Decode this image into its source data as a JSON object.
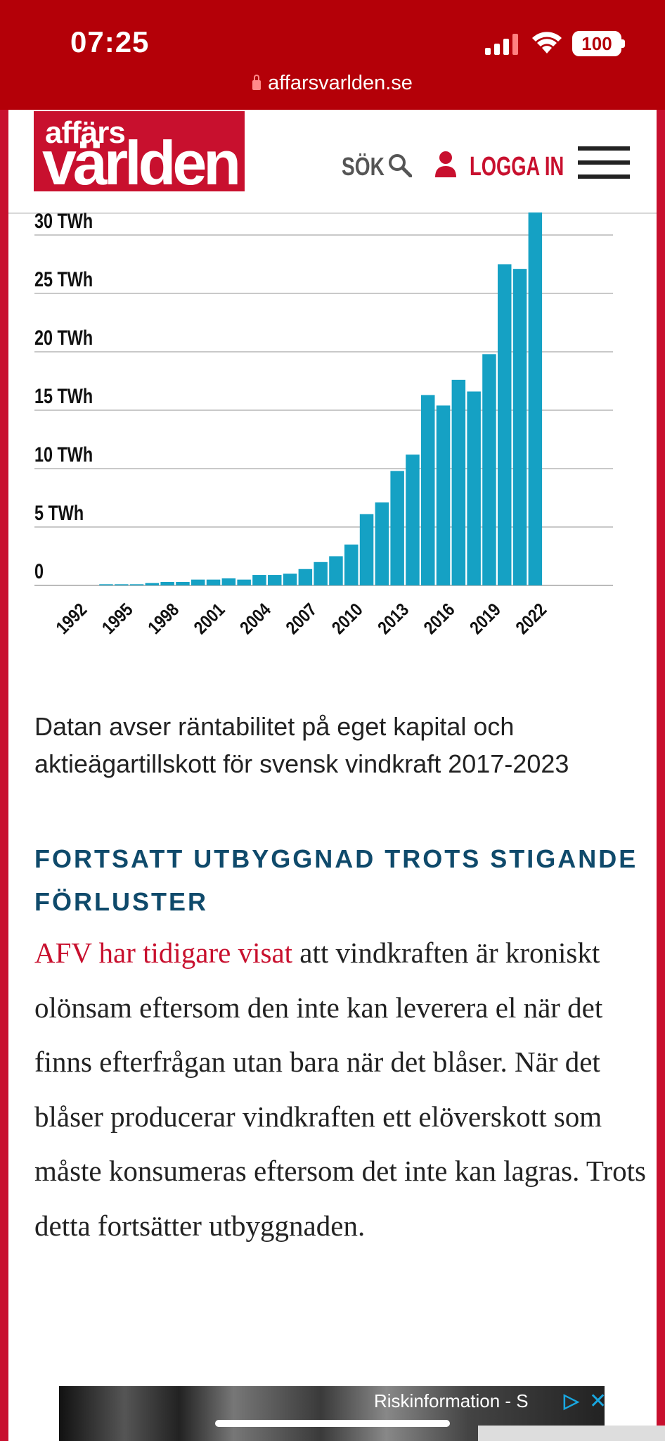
{
  "status_bar": {
    "time": "07:25",
    "battery": "100",
    "url": "affarsvarlden.se"
  },
  "header": {
    "logo_line1": "affärs",
    "logo_line2": "världen",
    "search_label": "SÖK",
    "login_label": "LOGGA IN"
  },
  "colors": {
    "brand_red": "#c8102e",
    "bar_blue": "#15a1c4",
    "heading_blue": "#0f4a6b"
  },
  "chart_data": {
    "type": "bar",
    "ylabel_ticks": [
      "0",
      "5 TWh",
      "10 TWh",
      "15 TWh",
      "20 TWh",
      "25 TWh",
      "30 TWh"
    ],
    "ylim": [
      0,
      32
    ],
    "x_tick_labels": [
      "1992",
      "1995",
      "1998",
      "2001",
      "2004",
      "2007",
      "2010",
      "2013",
      "2016",
      "2019",
      "2022"
    ],
    "categories": [
      1990,
      1991,
      1992,
      1993,
      1994,
      1995,
      1996,
      1997,
      1998,
      1999,
      2000,
      2001,
      2002,
      2003,
      2004,
      2005,
      2006,
      2007,
      2008,
      2009,
      2010,
      2011,
      2012,
      2013,
      2014,
      2015,
      2016,
      2017,
      2018,
      2019,
      2020,
      2021,
      2022
    ],
    "values": [
      0,
      0,
      0,
      0,
      0.1,
      0.1,
      0.1,
      0.2,
      0.3,
      0.3,
      0.5,
      0.5,
      0.6,
      0.5,
      0.9,
      0.9,
      1.0,
      1.4,
      2.0,
      2.5,
      3.5,
      6.1,
      7.1,
      9.8,
      11.2,
      16.3,
      15.4,
      17.6,
      16.6,
      19.8,
      27.5,
      27.1,
      32.0
    ],
    "grid": true
  },
  "article": {
    "caption": "Datan avser räntabilitet på eget kapital och aktieägartillskott för svensk vindkraft 2017-2023",
    "heading": "FORTSATT UTBYGGNAD TROTS STIGANDE FÖRLUSTER",
    "link_text": "AFV har tidigare visat",
    "body_rest": " att vindkraften är kroniskt olönsam eftersom den inte kan leverera el när det finns efterfrågan utan bara när det blåser. När det blåser producerar vindkraften ett elöverskott som måste konsumeras eftersom det inte kan lagras. Trots detta fortsätter utbyggnaden."
  },
  "ad": {
    "text": "Riskinformation - S"
  }
}
